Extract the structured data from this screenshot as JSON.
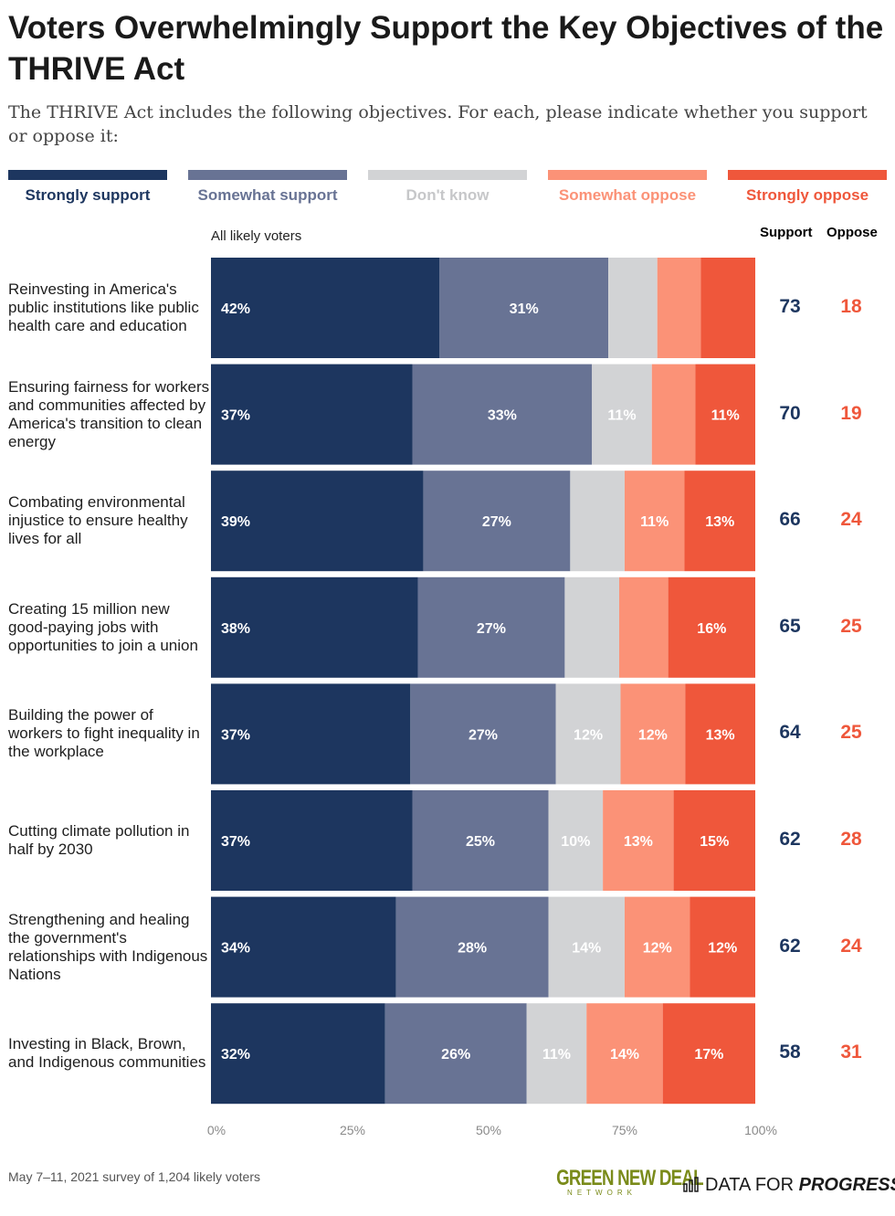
{
  "title": "Voters Overwhelmingly Support the Key Objectives of the THRIVE Act",
  "subtitle": "The THRIVE Act includes the following objectives. For each, please indicate whether you support or oppose it:",
  "group_label": "All likely voters",
  "col_support": "Support",
  "col_oppose": "Oppose",
  "footer_note": "May 7–11, 2021 survey of 1,204 likely voters",
  "logo_gnd_big": "GREEN NEW DEAL",
  "logo_gnd_small": "NETWORK",
  "logo_dfp_a": "DATA FOR",
  "logo_dfp_b": "PROGRESS",
  "colors": {
    "strongly_support": "#1d365f",
    "somewhat_support": "#687394",
    "dont_know": "#d2d3d5",
    "somewhat_oppose": "#fb9277",
    "strongly_oppose": "#ef573b",
    "support_text": "#1d365f",
    "oppose_text": "#ef573b"
  },
  "chart_data": {
    "type": "bar",
    "orientation": "horizontal",
    "stacked": true,
    "xlim": [
      0,
      100
    ],
    "xticks": [
      "0%",
      "25%",
      "50%",
      "75%",
      "100%"
    ],
    "legend": [
      {
        "name": "Strongly support",
        "color": "#1d365f",
        "text_color": "#1d365f"
      },
      {
        "name": "Somewhat support",
        "color": "#687394",
        "text_color": "#687394"
      },
      {
        "name": "Don't know",
        "color": "#d2d3d5",
        "text_color": "#c6c7c9"
      },
      {
        "name": "Somewhat oppose",
        "color": "#fb9277",
        "text_color": "#fb9277"
      },
      {
        "name": "Strongly oppose",
        "color": "#ef573b",
        "text_color": "#ef573b"
      }
    ],
    "rows": [
      {
        "label": "Reinvesting in America's public institutions like public health care and education",
        "values": [
          42,
          31,
          9,
          8,
          10
        ],
        "labels": [
          "42%",
          "31%",
          "",
          "",
          ""
        ],
        "support": "73",
        "oppose": "18"
      },
      {
        "label": "Ensuring fairness for workers and communities affected by America's transition to clean energy",
        "values": [
          37,
          33,
          11,
          8,
          11
        ],
        "labels": [
          "37%",
          "33%",
          "11%",
          "",
          "11%"
        ],
        "support": "70",
        "oppose": "19"
      },
      {
        "label": "Combating environmental injustice to ensure healthy lives for all",
        "values": [
          39,
          27,
          10,
          11,
          13
        ],
        "labels": [
          "39%",
          "27%",
          "",
          "11%",
          "13%"
        ],
        "support": "66",
        "oppose": "24"
      },
      {
        "label": "Creating 15 million new good-paying jobs with opportunities to join a union",
        "values": [
          38,
          27,
          10,
          9,
          16
        ],
        "labels": [
          "38%",
          "27%",
          "",
          "",
          "16%"
        ],
        "support": "65",
        "oppose": "25"
      },
      {
        "label": "Building the power of workers to fight inequality in the workplace",
        "values": [
          37,
          27,
          12,
          12,
          13
        ],
        "labels": [
          "37%",
          "27%",
          "12%",
          "12%",
          "13%"
        ],
        "support": "64",
        "oppose": "25"
      },
      {
        "label": "Cutting climate pollution in half by 2030",
        "values": [
          37,
          25,
          10,
          13,
          15
        ],
        "labels": [
          "37%",
          "25%",
          "10%",
          "13%",
          "15%"
        ],
        "support": "62",
        "oppose": "28"
      },
      {
        "label": "Strengthening and healing the government's relationships with Indigenous Nations",
        "values": [
          34,
          28,
          14,
          12,
          12
        ],
        "labels": [
          "34%",
          "28%",
          "14%",
          "12%",
          "12%"
        ],
        "support": "62",
        "oppose": "24"
      },
      {
        "label": "Investing in Black, Brown, and Indigenous communities",
        "values": [
          32,
          26,
          11,
          14,
          17
        ],
        "labels": [
          "32%",
          "26%",
          "11%",
          "14%",
          "17%"
        ],
        "support": "58",
        "oppose": "31"
      }
    ]
  }
}
